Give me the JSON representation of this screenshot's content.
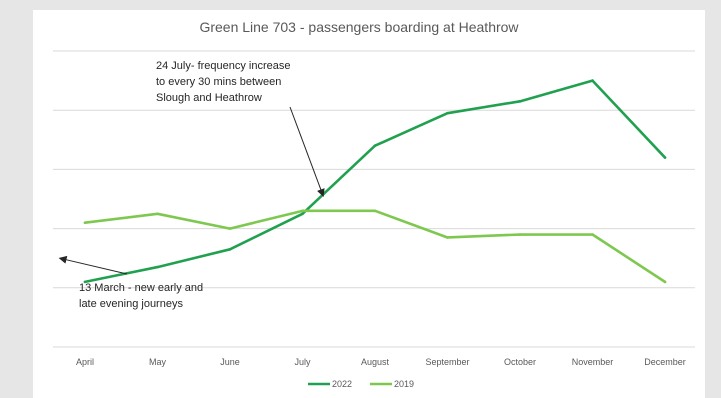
{
  "chart_data": {
    "type": "line",
    "title": "Green Line 703 - passengers boarding at Heathrow",
    "xlabel": "",
    "ylabel": "",
    "categories": [
      "April",
      "May",
      "June",
      "July",
      "August",
      "September",
      "October",
      "November",
      "December"
    ],
    "series": [
      {
        "name": "2022",
        "color": "#21a150",
        "values": [
          22,
          27,
          33,
          45,
          68,
          79,
          83,
          90,
          64
        ]
      },
      {
        "name": "2019",
        "color": "#7ec850",
        "values": [
          42,
          45,
          40,
          46,
          46,
          37,
          38,
          38,
          22
        ]
      }
    ],
    "ylim": [
      0,
      100
    ],
    "grid": true,
    "legend_position": "bottom",
    "annotations": [
      {
        "lines": [
          "24 July- frequency increase",
          "to every 30 mins between",
          "Slough and Heathrow"
        ],
        "x": 3.3,
        "y": 51
      },
      {
        "lines": [
          "13 March - new early and",
          "late evening journeys"
        ],
        "x": -0.35,
        "y": 30
      }
    ]
  }
}
